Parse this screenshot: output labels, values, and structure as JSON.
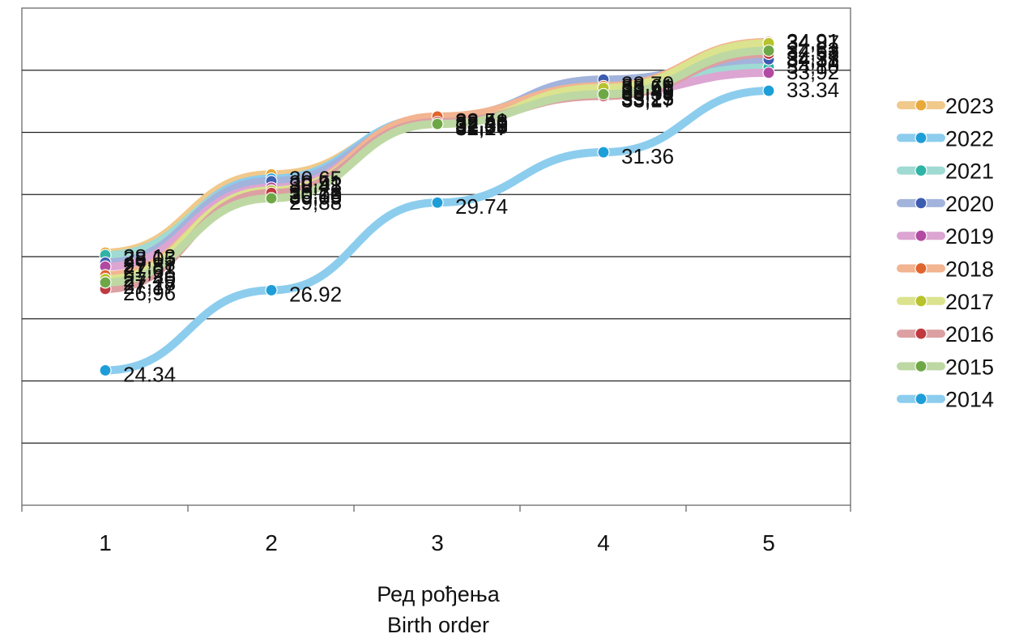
{
  "chart_data": {
    "type": "line",
    "categories": [
      "1",
      "2",
      "3",
      "4",
      "5"
    ],
    "xlabel_lines": [
      "Ред рођења",
      "Birth order"
    ],
    "ylim": [
      20,
      36
    ],
    "grid": true,
    "legend_position": "right",
    "series": [
      {
        "name": "2023",
        "color": "#f0c98b",
        "marker": "#e8a93a",
        "values": [
          28.13,
          30.65,
          32.38,
          33.55,
          34.37
        ],
        "labels": [
          "28,13",
          "30,65",
          "32,38",
          "33,55",
          "34,37"
        ]
      },
      {
        "name": "2022",
        "color": "#8ccdee",
        "marker": "#1e9ed8",
        "values": [
          27.87,
          30.51,
          32.48,
          33.61,
          34.31
        ],
        "labels": [
          "27,87",
          "30,51",
          "32,48",
          "33,61",
          "34,31"
        ]
      },
      {
        "name": "2021",
        "color": "#9fdad3",
        "marker": "#2fb3a5",
        "values": [
          28.05,
          30.41,
          32.41,
          33.39,
          34.1
        ],
        "labels": [
          "28,05",
          "30,41",
          "32,41",
          "33,39",
          "34,10"
        ]
      },
      {
        "name": "2020",
        "color": "#a2b3dc",
        "marker": "#3c5cb0",
        "values": [
          27.81,
          30.43,
          32.4,
          33.7,
          34.35
        ],
        "labels": [
          "27,81",
          "30,43",
          "32,40",
          "33,70",
          "34,35"
        ]
      },
      {
        "name": "2019",
        "color": "#dca5d2",
        "marker": "#b24aa1",
        "values": [
          27.68,
          30.22,
          32.39,
          33.25,
          33.92
        ],
        "labels": [
          "27,68",
          "30,22",
          "32,39",
          "33,25",
          "33,92"
        ]
      },
      {
        "name": "2018",
        "color": "#f2b491",
        "marker": "#e0642c",
        "values": [
          27.4,
          30.1,
          32.51,
          33.49,
          34.91
        ],
        "labels": [
          "27,40",
          "30,10",
          "32,51",
          "33,49",
          "34,91"
        ]
      },
      {
        "name": "2017",
        "color": "#dbe38e",
        "marker": "#b7c22c",
        "values": [
          27.28,
          30.13,
          32.27,
          33.43,
          34.87
        ],
        "labels": [
          "27,28",
          "30,13",
          "32,27",
          "33,43",
          "34,87"
        ]
      },
      {
        "name": "2016",
        "color": "#dca0a3",
        "marker": "#c0393f",
        "values": [
          26.96,
          30.05,
          32.33,
          33.17,
          34.53
        ],
        "labels": [
          "26,96",
          "30,05",
          "32,33",
          "33,17",
          "34,53"
        ]
      },
      {
        "name": "2015",
        "color": "#bed8a3",
        "marker": "#6ea846",
        "values": [
          27.17,
          29.88,
          32.27,
          33.23,
          34.63
        ],
        "labels": [
          "27,17",
          "29,88",
          "32,27",
          "33,23",
          "34,63"
        ]
      },
      {
        "name": "2014",
        "color": "#8ccdee",
        "marker": "#1e9ed8",
        "values": [
          24.34,
          26.92,
          29.74,
          31.36,
          33.34
        ],
        "labels": [
          "24.34",
          "26.92",
          "29.74",
          "31.36",
          "33.34"
        ]
      }
    ]
  }
}
